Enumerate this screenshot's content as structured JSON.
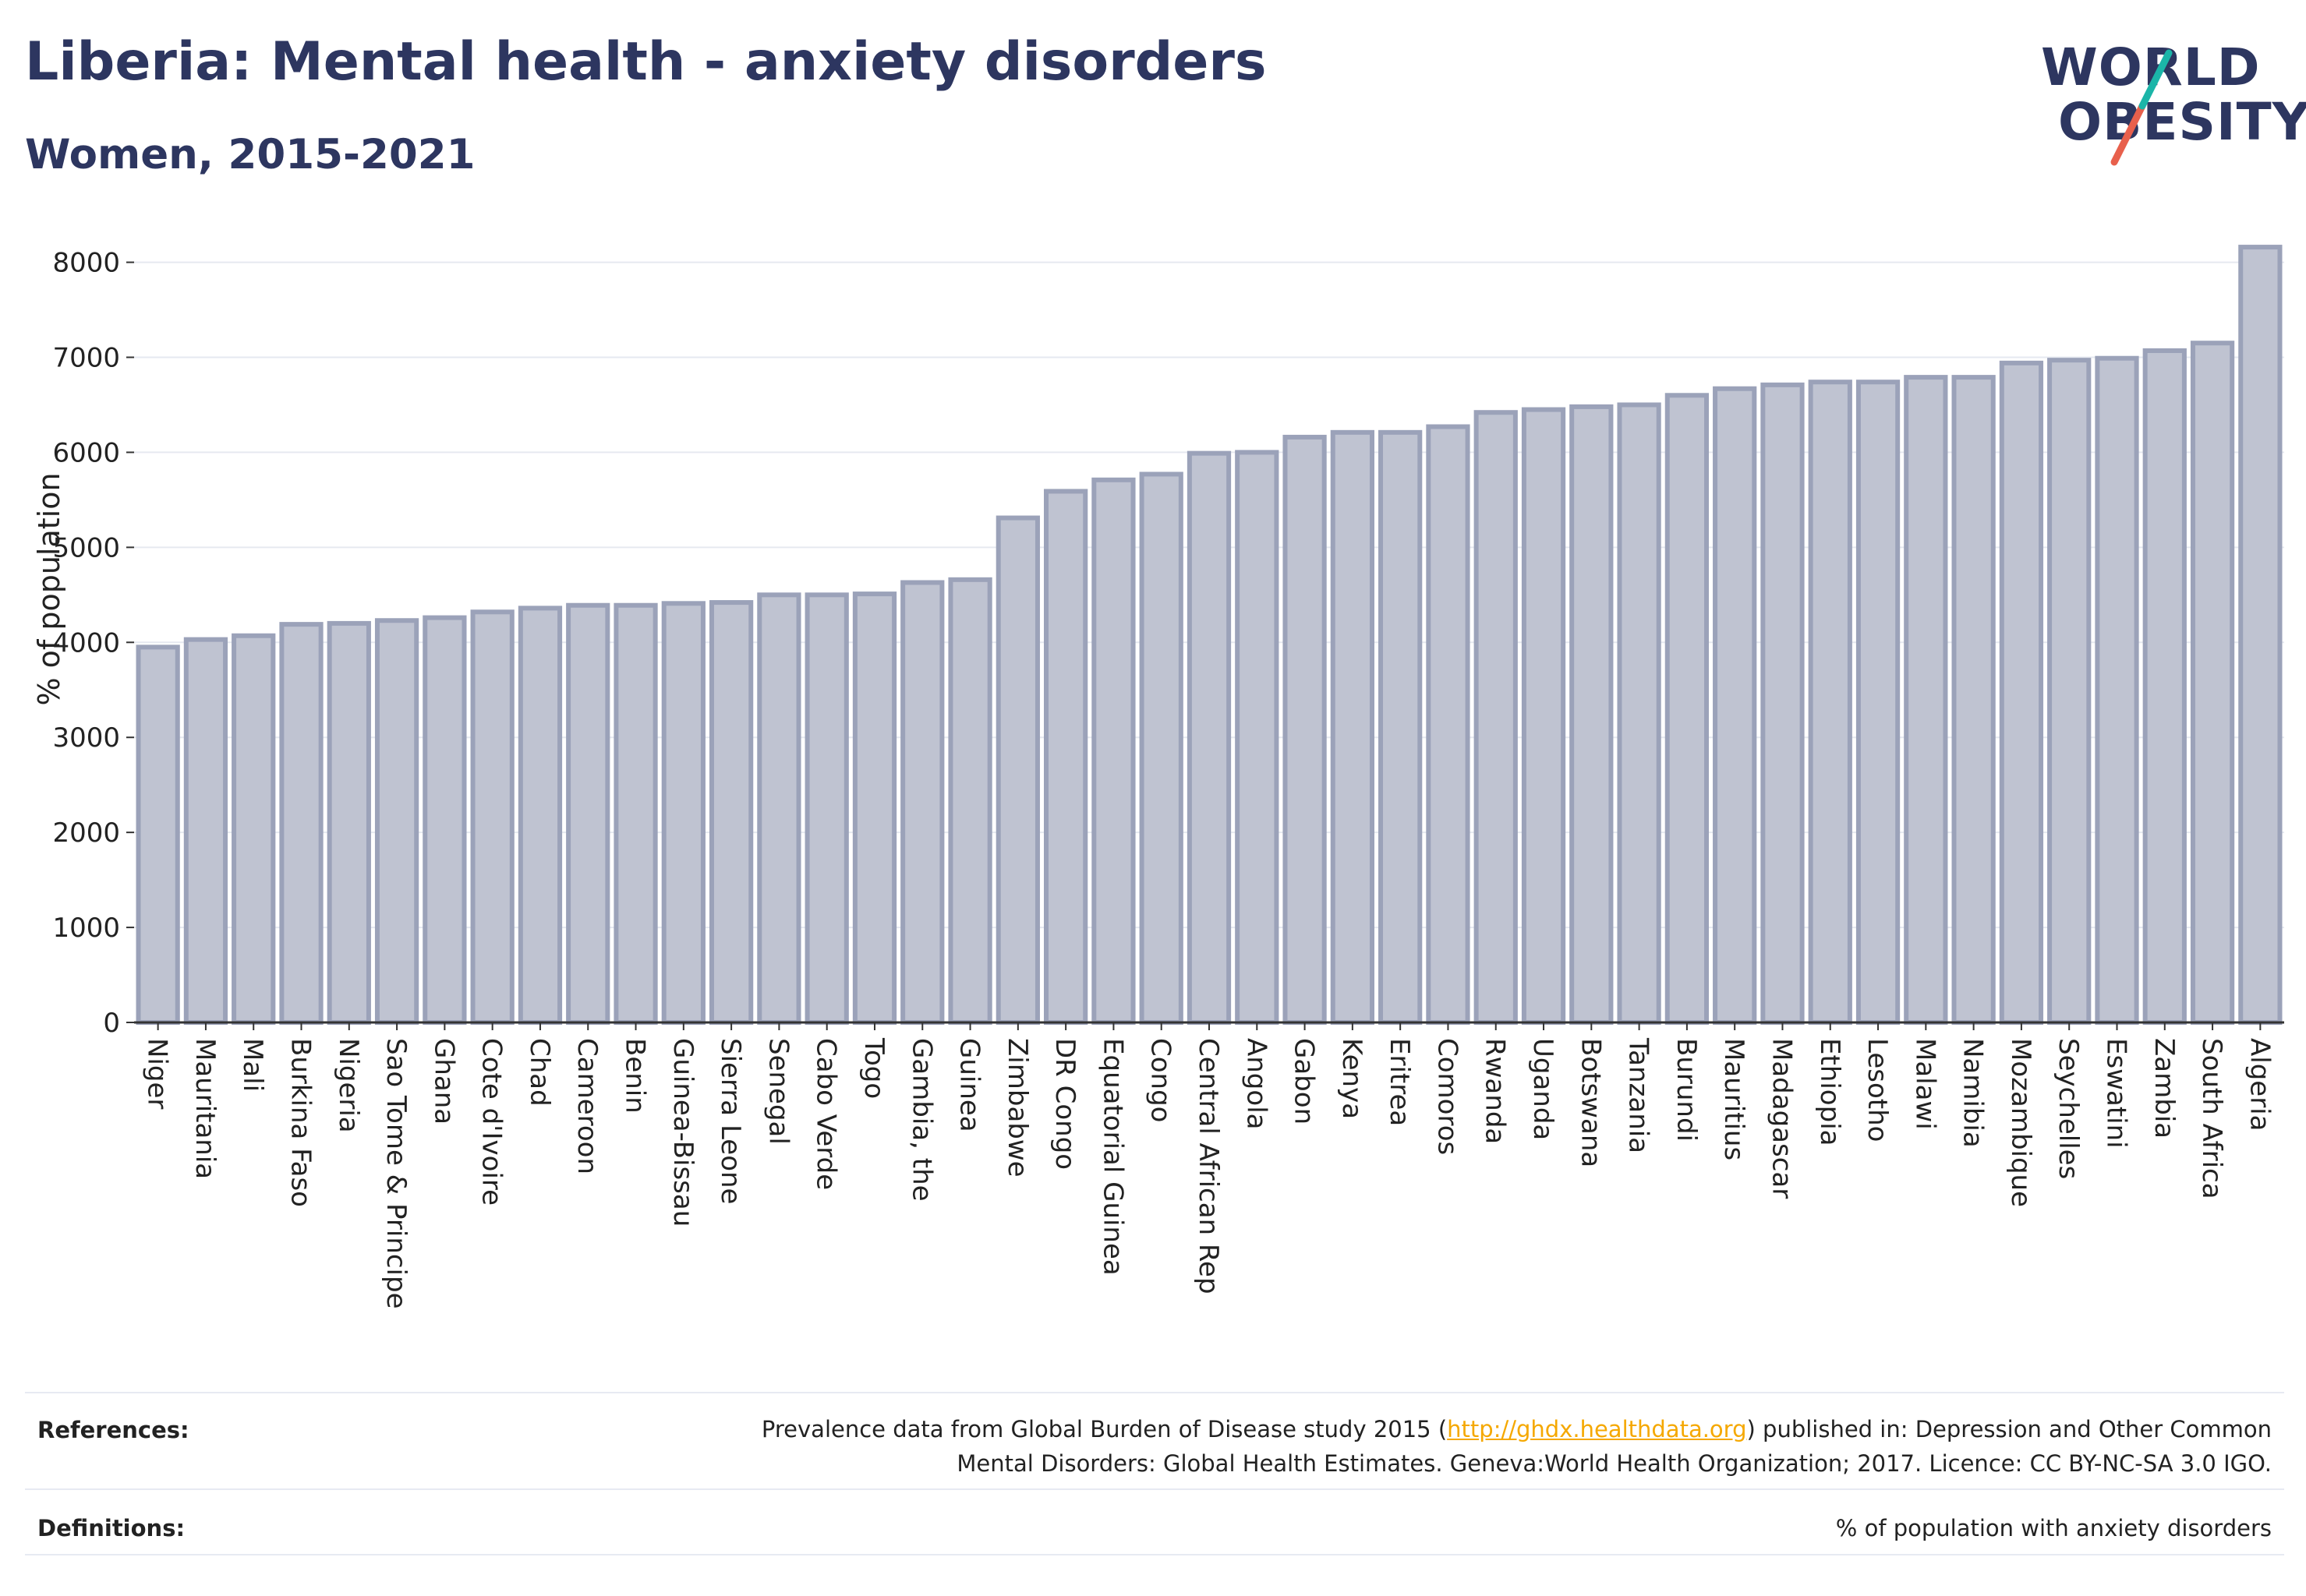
{
  "header": {
    "title": "Liberia: Mental health - anxiety disorders",
    "subtitle": "Women, 2015-2021"
  },
  "logo": {
    "line1": "WORLD",
    "line2": "OBESITY",
    "slash_colors": [
      "#1bb5a8",
      "#e8604c"
    ]
  },
  "colors": {
    "bar_fill": "#bfc3d1",
    "bar_stroke": "#9ba2b9",
    "text_dark": "#2d3660",
    "grid": "#e6e9f0",
    "link": "#f5a800"
  },
  "chart_data": {
    "type": "bar",
    "ylabel": "% of population",
    "xlabel": "",
    "ylim": [
      0,
      8300
    ],
    "yticks": [
      0,
      1000,
      2000,
      3000,
      4000,
      5000,
      6000,
      7000,
      8000
    ],
    "grid": true,
    "categories": [
      "Niger",
      "Mauritania",
      "Mali",
      "Burkina Faso",
      "Nigeria",
      "Sao Tome & Principe",
      "Ghana",
      "Cote d'Ivoire",
      "Chad",
      "Cameroon",
      "Benin",
      "Guinea-Bissau",
      "Sierra Leone",
      "Senegal",
      "Cabo Verde",
      "Togo",
      "Gambia, the",
      "Guinea",
      "Zimbabwe",
      "DR Congo",
      "Equatorial Guinea",
      "Congo",
      "Central African Rep",
      "Angola",
      "Gabon",
      "Kenya",
      "Eritrea",
      "Comoros",
      "Rwanda",
      "Uganda",
      "Botswana",
      "Tanzania",
      "Burundi",
      "Mauritius",
      "Madagascar",
      "Ethiopia",
      "Lesotho",
      "Malawi",
      "Namibia",
      "Mozambique",
      "Seychelles",
      "Eswatini",
      "Zambia",
      "South Africa",
      "Algeria"
    ],
    "values": [
      3950,
      4030,
      4070,
      4190,
      4200,
      4230,
      4260,
      4320,
      4360,
      4390,
      4390,
      4410,
      4420,
      4500,
      4500,
      4510,
      4630,
      4660,
      5310,
      5590,
      5710,
      5770,
      5990,
      6000,
      6160,
      6210,
      6210,
      6270,
      6420,
      6450,
      6480,
      6500,
      6600,
      6670,
      6710,
      6740,
      6740,
      6790,
      6790,
      6940,
      6970,
      6990,
      7070,
      7150,
      8160
    ]
  },
  "footer": {
    "references_label": "References:",
    "references_text_1": "Prevalence data from Global Burden of Disease study 2015 (",
    "references_link": "http://ghdx.healthdata.org",
    "references_text_2": ") published in: Depression and Other Common",
    "references_text_3": "Mental Disorders: Global Health Estimates. Geneva:World Health Organization; 2017. Licence: CC BY-NC-SA 3.0 IGO.",
    "definitions_label": "Definitions:",
    "definitions_text": "% of population with anxiety disorders"
  }
}
